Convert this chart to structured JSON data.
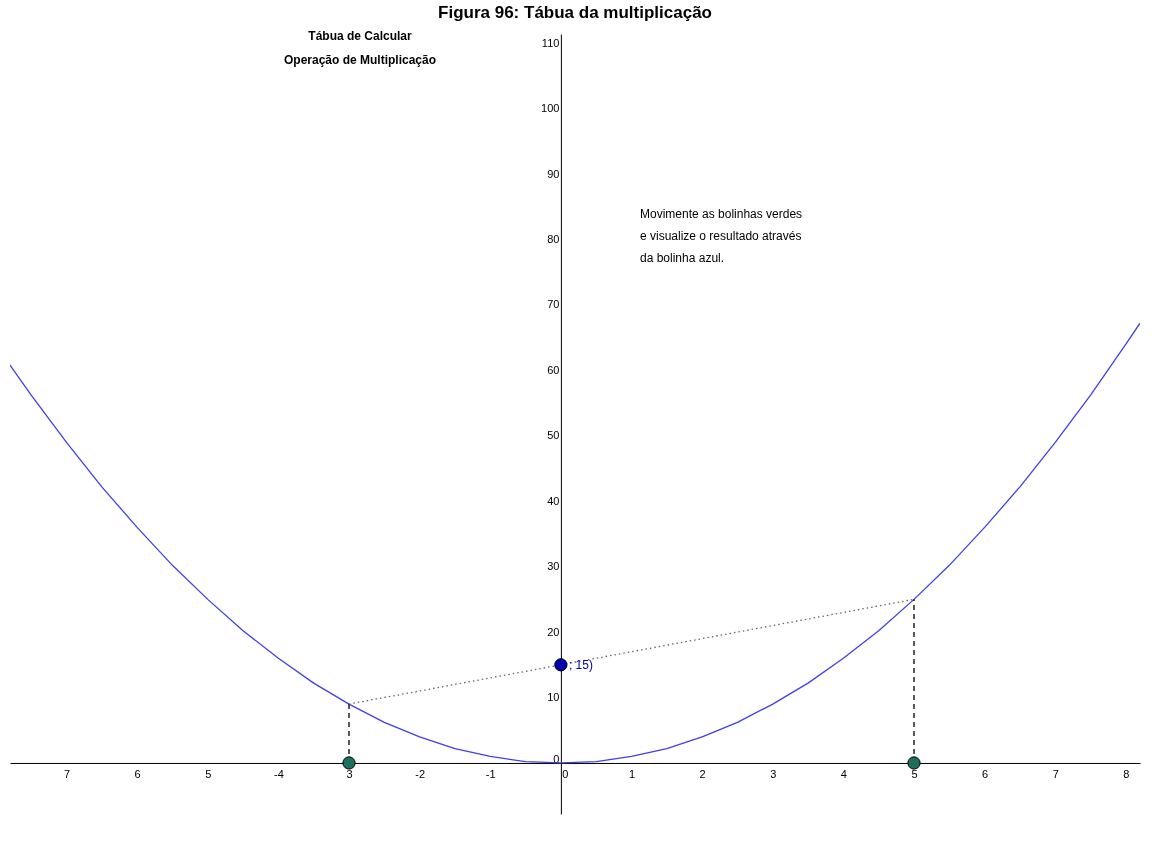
{
  "chart_data": {
    "type": "line",
    "title": "Figura 96: Tábua da multiplicação",
    "annotations": [
      "Tábua de Calcular",
      "Operação de Multiplicação",
      "Movimente as bolinhas verdes",
      "e visualize o resultado através",
      "da bolinha azul.",
      {
        "text": "; 15)",
        "x": 0,
        "y": 15
      }
    ],
    "xlim": [
      -7.8,
      8.2
    ],
    "ylim": [
      -7.8,
      111.4
    ],
    "xticks": [
      {
        "value": -7,
        "label": "7"
      },
      {
        "value": -6,
        "label": "6"
      },
      {
        "value": -5,
        "label": "5"
      },
      -4,
      {
        "value": -3,
        "label": "3"
      },
      -2,
      -1,
      0,
      1,
      2,
      3,
      4,
      5,
      6,
      7,
      8
    ],
    "yticks": [
      0,
      10,
      20,
      30,
      40,
      50,
      60,
      70,
      80,
      90,
      100,
      110
    ],
    "grid": false,
    "series": [
      {
        "color": "#4040e8",
        "marker": "none",
        "line_style": "solid",
        "x": [
          -7.8,
          -7.5,
          -7,
          -6.5,
          -6,
          -5.5,
          -5,
          -4.5,
          -4,
          -3.5,
          -3,
          -2.5,
          -2,
          -1.5,
          -1,
          -0.5,
          0,
          0.5,
          1,
          1.5,
          2,
          2.5,
          3,
          3.5,
          4,
          4.5,
          5,
          5.5,
          6,
          6.5,
          7,
          7.5,
          8,
          8.2
        ],
        "values": [
          60.8,
          56.2,
          49,
          42.2,
          36,
          30.2,
          25,
          20.2,
          16,
          12.2,
          9,
          6.2,
          4,
          2.2,
          1,
          0.2,
          0,
          0.2,
          1,
          2.2,
          4,
          6.2,
          9,
          12.2,
          16,
          20.2,
          25,
          30.2,
          36,
          42.2,
          49,
          56.2,
          64,
          67.2
        ]
      },
      {
        "color": "#000000",
        "marker": "none",
        "line_style": "dashed",
        "x": [
          -3,
          -3
        ],
        "values": [
          0,
          9
        ]
      },
      {
        "color": "#000000",
        "marker": "none",
        "line_style": "dashed",
        "x": [
          5,
          5
        ],
        "values": [
          0,
          25
        ]
      },
      {
        "color": "#666666",
        "marker": "none",
        "line_style": "dotted",
        "x": [
          -3,
          5
        ],
        "values": [
          9,
          25
        ]
      },
      {
        "type": "scatter",
        "color": "#1e6e5e",
        "marker": "circle",
        "x": [
          -3,
          5
        ],
        "values": [
          0,
          0
        ]
      },
      {
        "type": "scatter",
        "color": "#0000b0",
        "marker": "circle",
        "x": [
          0
        ],
        "values": [
          15
        ]
      }
    ]
  }
}
